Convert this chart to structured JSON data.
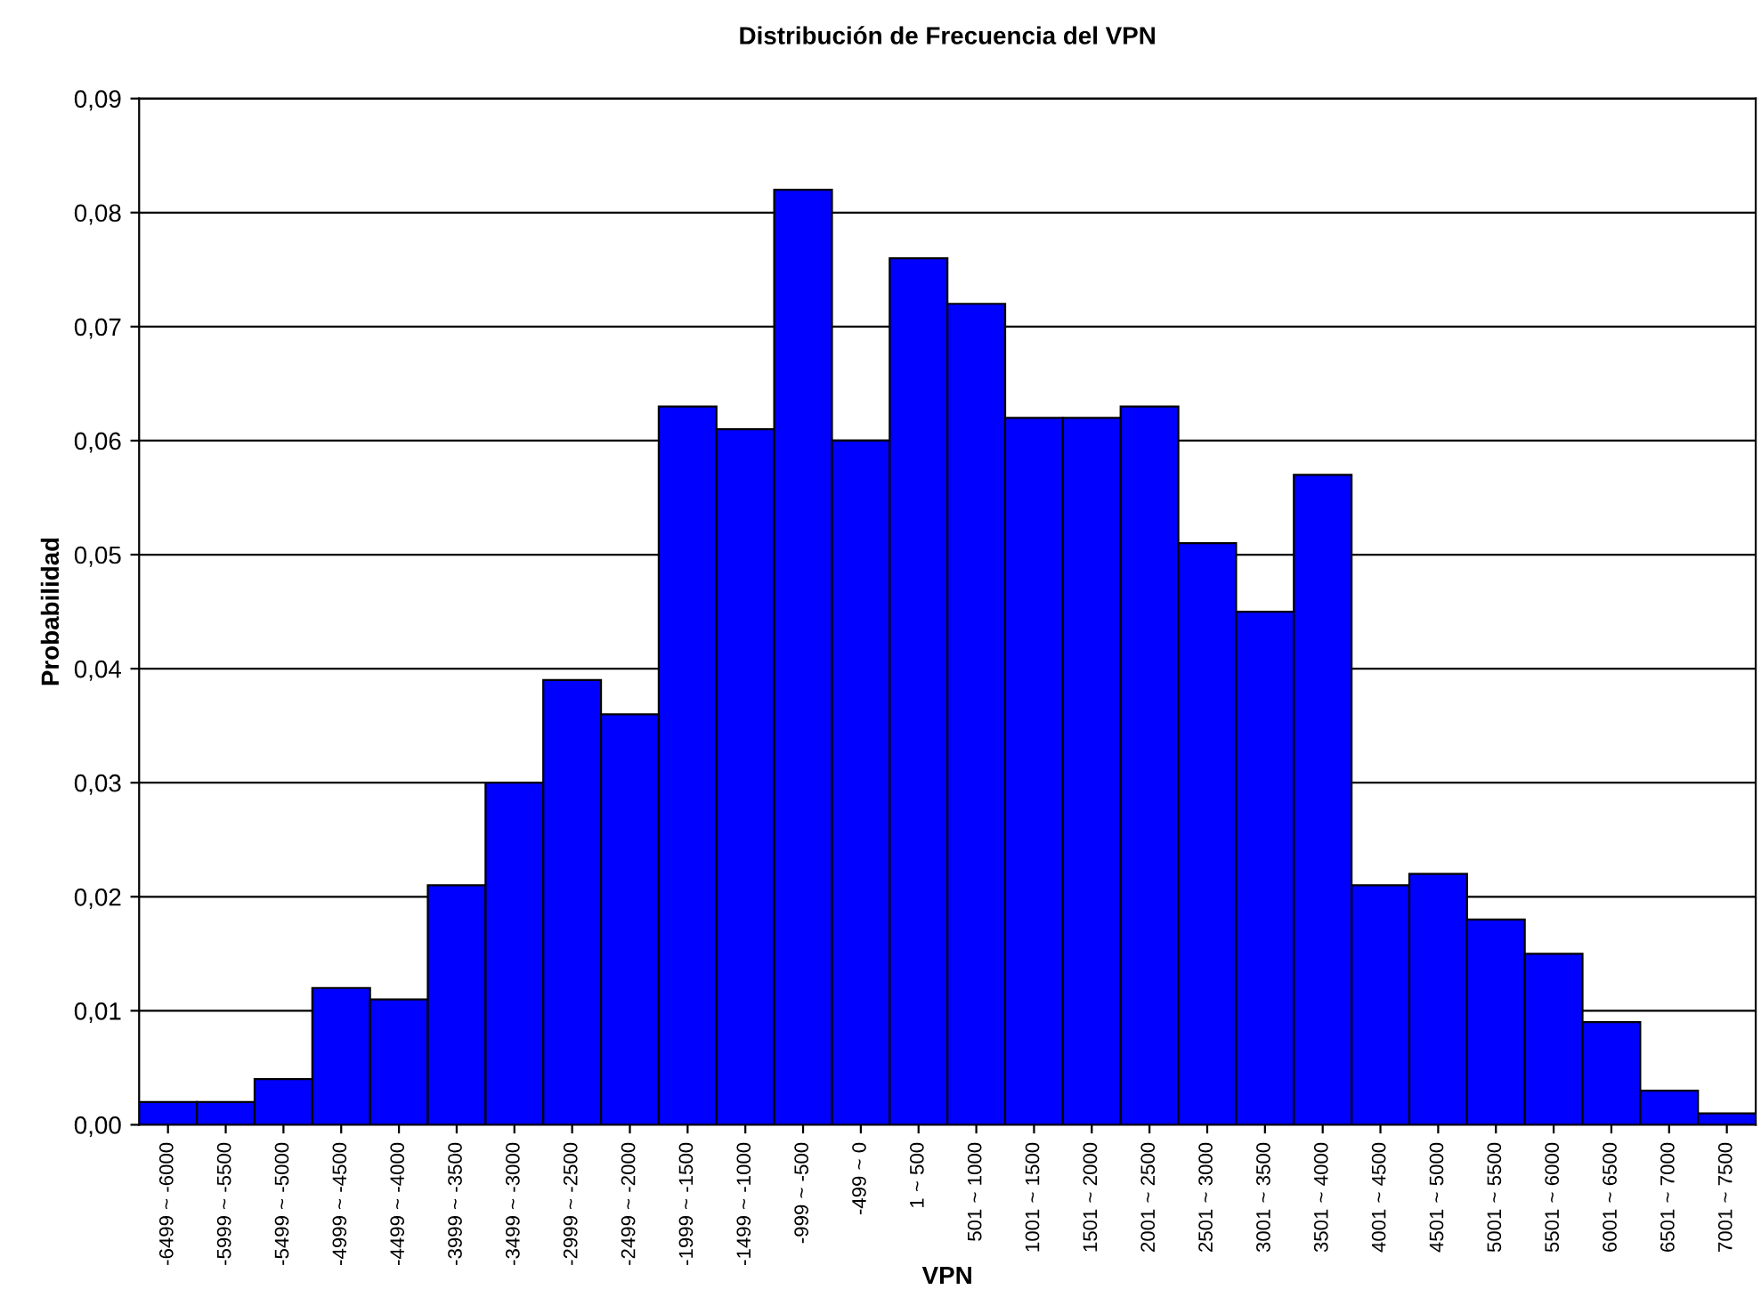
{
  "chart_data": {
    "type": "bar",
    "title": "Distribución de Frecuencia del VPN",
    "xlabel": "VPN",
    "ylabel": "Probabilidad",
    "categories": [
      "-6499 ~ -6000",
      "-5999 ~ -5500",
      "-5499 ~ -5000",
      "-4999 ~ -4500",
      "-4499 ~ -4000",
      "-3999 ~ -3500",
      "-3499 ~ -3000",
      "-2999 ~ -2500",
      "-2499 ~ -2000",
      "-1999 ~ -1500",
      "-1499 ~ -1000",
      "-999 ~ -500",
      "-499 ~ 0",
      "1 ~ 500",
      "501 ~ 1000",
      "1001 ~ 1500",
      "1501 ~ 2000",
      "2001 ~ 2500",
      "2501 ~ 3000",
      "3001 ~ 3500",
      "3501 ~ 4000",
      "4001 ~ 4500",
      "4501 ~ 5000",
      "5001 ~ 5500",
      "5501 ~ 6000",
      "6001 ~ 6500",
      "6501 ~ 7000",
      "7001 ~ 7500"
    ],
    "values": [
      0.002,
      0.002,
      0.004,
      0.012,
      0.011,
      0.021,
      0.03,
      0.039,
      0.036,
      0.063,
      0.061,
      0.082,
      0.06,
      0.076,
      0.072,
      0.062,
      0.062,
      0.063,
      0.051,
      0.045,
      0.057,
      0.021,
      0.022,
      0.018,
      0.015,
      0.009,
      0.003,
      0.001
    ],
    "color": "#0000ff",
    "ylim": [
      0,
      0.09
    ],
    "yticks": [
      {
        "value": 0,
        "label": "0,00"
      },
      {
        "value": 0.01,
        "label": "0,01"
      },
      {
        "value": 0.02,
        "label": "0,02"
      },
      {
        "value": 0.03,
        "label": "0,03"
      },
      {
        "value": 0.04,
        "label": "0,04"
      },
      {
        "value": 0.05,
        "label": "0,05"
      },
      {
        "value": 0.06,
        "label": "0,06"
      },
      {
        "value": 0.07,
        "label": "0,07"
      },
      {
        "value": 0.08,
        "label": "0,08"
      },
      {
        "value": 0.09,
        "label": "0,09"
      }
    ],
    "grid": "y",
    "legend": false
  }
}
